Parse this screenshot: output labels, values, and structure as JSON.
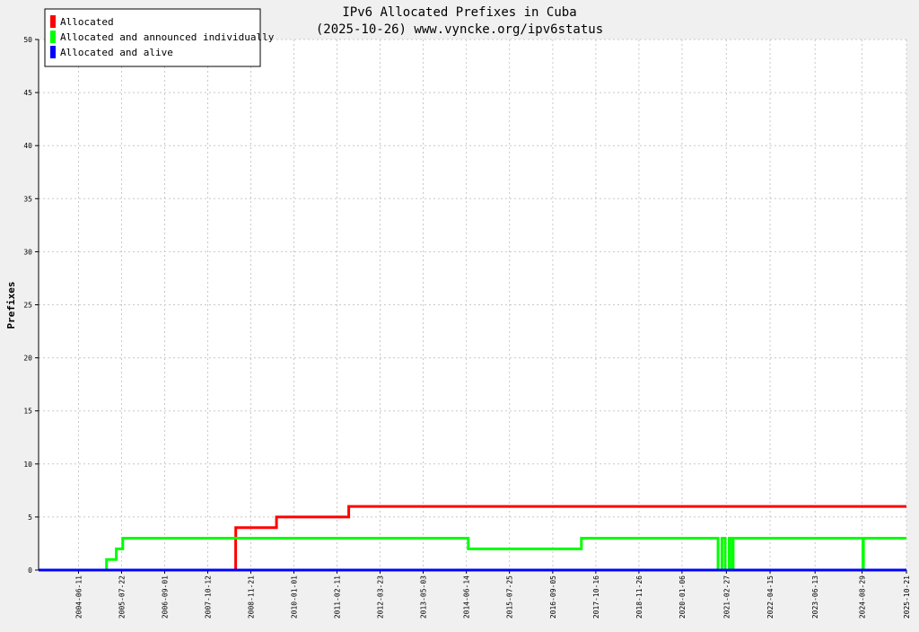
{
  "chart_data": {
    "type": "line",
    "title": "IPv6 Allocated Prefixes in Cuba",
    "subtitle": "(2025-10-26) www.vyncke.org/ipv6status",
    "xlabel": "",
    "ylabel": "Prefixes",
    "xlim": [
      "2003-06-01",
      "2025-10-21"
    ],
    "ylim": [
      0,
      50
    ],
    "y_ticks": [
      0,
      5,
      10,
      15,
      20,
      25,
      30,
      35,
      40,
      45,
      50
    ],
    "x_ticks": [
      "2004-06-11",
      "2005-07-22",
      "2006-09-01",
      "2007-10-12",
      "2008-11-21",
      "2010-01-01",
      "2011-02-11",
      "2012-03-23",
      "2013-05-03",
      "2014-06-14",
      "2015-07-25",
      "2016-09-05",
      "2017-10-16",
      "2018-11-26",
      "2020-01-06",
      "2021-02-27",
      "2022-04-15",
      "2023-06-13",
      "2024-08-29",
      "2025-10-21"
    ],
    "grid": true,
    "legend_position": "top-left",
    "series": [
      {
        "name": "Allocated",
        "color": "#ff0000",
        "step": true,
        "points": [
          [
            "2003-06-01",
            0
          ],
          [
            "2008-07-01",
            3
          ],
          [
            "2008-07-02",
            4
          ],
          [
            "2009-07-20",
            4
          ],
          [
            "2009-07-21",
            5
          ],
          [
            "2011-06-01",
            5
          ],
          [
            "2011-06-02",
            6
          ],
          [
            "2025-10-21",
            6
          ]
        ]
      },
      {
        "name": "Allocated and announced individually",
        "color": "#00ff00",
        "step": true,
        "points": [
          [
            "2003-06-01",
            0
          ],
          [
            "2005-03-01",
            0
          ],
          [
            "2005-03-02",
            1
          ],
          [
            "2005-06-01",
            1
          ],
          [
            "2005-06-02",
            2
          ],
          [
            "2005-08-01",
            2
          ],
          [
            "2005-08-02",
            3
          ],
          [
            "2014-07-01",
            3
          ],
          [
            "2014-07-02",
            2
          ],
          [
            "2017-06-01",
            2
          ],
          [
            "2017-06-02",
            3
          ],
          [
            "2020-12-10",
            3
          ],
          [
            "2020-12-11",
            0
          ],
          [
            "2021-01-15",
            0
          ],
          [
            "2021-01-16",
            3
          ],
          [
            "2021-02-15",
            3
          ],
          [
            "2021-02-16",
            0
          ],
          [
            "2021-03-25",
            0
          ],
          [
            "2021-03-26",
            3
          ],
          [
            "2021-04-20",
            3
          ],
          [
            "2021-04-21",
            0
          ],
          [
            "2021-05-01",
            0
          ],
          [
            "2021-05-02",
            3
          ],
          [
            "2024-09-05",
            3
          ],
          [
            "2024-09-06",
            0
          ],
          [
            "2024-09-10",
            0
          ],
          [
            "2024-09-11",
            3
          ],
          [
            "2025-10-21",
            3
          ]
        ]
      },
      {
        "name": "Allocated and alive",
        "color": "#0000ff",
        "step": true,
        "points": [
          [
            "2003-06-01",
            0
          ],
          [
            "2025-10-21",
            0
          ]
        ]
      }
    ]
  },
  "colors": {
    "background": "#f0f0f0",
    "plot_background": "#ffffff",
    "grid": "#c8c8c8"
  }
}
